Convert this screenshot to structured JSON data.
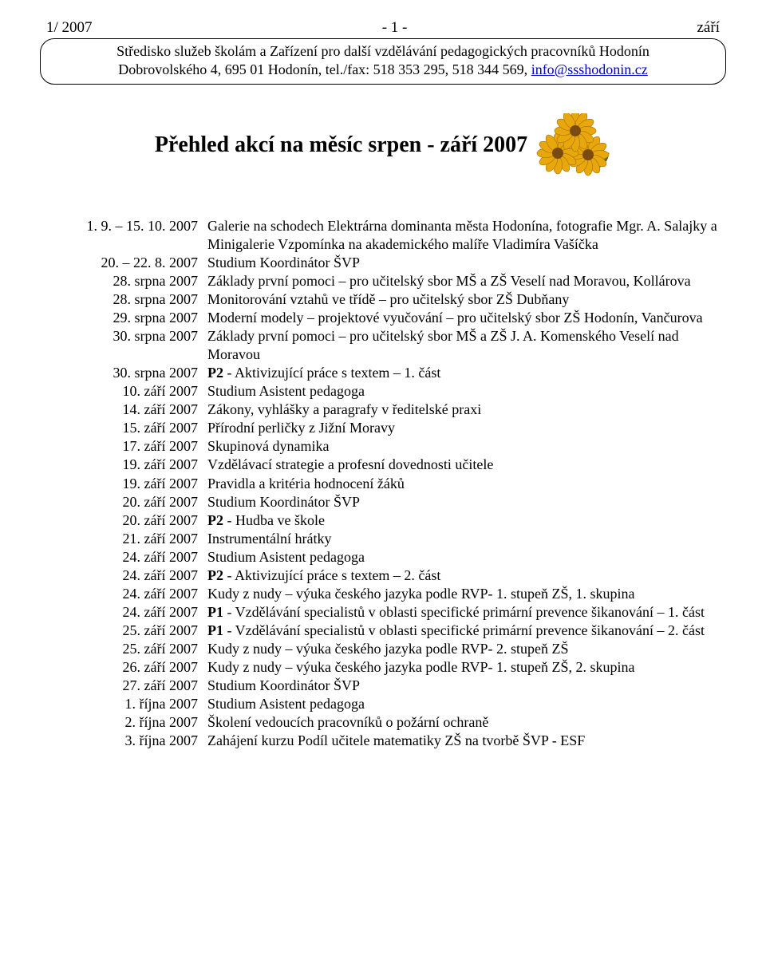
{
  "header": {
    "left": "1/ 2007",
    "center": "- 1 -",
    "right": "září"
  },
  "infobox": {
    "line1": "Středisko služeb školám a Zařízení pro další vzdělávání pedagogických pracovníků Hodonín",
    "line2a": "Dobrovolského 4, 695 01 Hodonín, tel./fax: 518 353 295, 518 344 569, ",
    "email": "info@ssshodonin.cz"
  },
  "title": "Přehled akcí na měsíc srpen - září 2007",
  "events": [
    {
      "date": "1. 9. – 15. 10. 2007",
      "desc": "Galerie na schodech Elektrárna dominanta města Hodonína, fotografie Mgr. A. Salajky a Minigalerie Vzpomínka na akademického malíře Vladimíra Vašíčka"
    },
    {
      "date": "20. – 22. 8. 2007",
      "desc": "Studium Koordinátor ŠVP"
    },
    {
      "date": "28. srpna 2007",
      "desc": "Základy první pomoci – pro učitelský sbor MŠ a ZŠ Veselí nad Moravou, Kollárova"
    },
    {
      "date": "28. srpna 2007",
      "desc": "Monitorování vztahů ve třídě – pro učitelský sbor ZŠ Dubňany"
    },
    {
      "date": "29. srpna 2007",
      "desc": "Moderní modely – projektové vyučování – pro učitelský sbor ZŠ Hodonín, Vančurova"
    },
    {
      "date": "30. srpna 2007",
      "desc": "Základy první pomoci – pro učitelský sbor MŠ a ZŠ J. A. Komenského Veselí nad Moravou"
    },
    {
      "date": "30. srpna 2007",
      "desc": "<b>P2</b> - Aktivizující práce s textem – 1. část"
    },
    {
      "date": "10. září 2007",
      "desc": "Studium Asistent pedagoga"
    },
    {
      "date": "14. září 2007",
      "desc": "Zákony, vyhlášky a paragrafy v ředitelské praxi"
    },
    {
      "date": "15. září 2007",
      "desc": "Přírodní perličky z Jižní Moravy"
    },
    {
      "date": "17. září 2007",
      "desc": "Skupinová dynamika"
    },
    {
      "date": "19. září 2007",
      "desc": "Vzdělávací strategie a profesní dovednosti učitele"
    },
    {
      "date": "19. září 2007",
      "desc": "Pravidla a kritéria hodnocení žáků"
    },
    {
      "date": "20. září 2007",
      "desc": "Studium Koordinátor ŠVP"
    },
    {
      "date": "20. září 2007",
      "desc": "<b>P2</b> - Hudba ve škole"
    },
    {
      "date": "21. září 2007",
      "desc": "Instrumentální hrátky"
    },
    {
      "date": "24. září 2007",
      "desc": "Studium Asistent pedagoga"
    },
    {
      "date": "24. září 2007",
      "desc": "<b>P2</b> - Aktivizující práce s textem – 2. část"
    },
    {
      "date": "24. září 2007",
      "desc": "Kudy z nudy – výuka českého jazyka podle RVP- 1. stupeň ZŠ, 1. skupina"
    },
    {
      "date": "24. září 2007",
      "desc": "<b>P1</b> - Vzdělávání specialistů v oblasti specifické primární prevence šikanování – 1. část"
    },
    {
      "date": "25. září 2007",
      "desc": "<b>P1</b> - Vzdělávání specialistů v oblasti specifické primární prevence šikanování – 2. část"
    },
    {
      "date": "25. září 2007",
      "desc": "Kudy z nudy – výuka českého jazyka podle RVP- 2. stupeň ZŠ"
    },
    {
      "date": "26. září 2007",
      "desc": "Kudy z nudy – výuka českého jazyka podle RVP- 1. stupeň ZŠ, 2. skupina"
    },
    {
      "date": "27. září 2007",
      "desc": "Studium Koordinátor ŠVP"
    },
    {
      "date": "1. října 2007",
      "desc": "Studium Asistent pedagoga"
    },
    {
      "date": "2. října 2007",
      "desc": "Školení vedoucích pracovníků o požární ochraně"
    },
    {
      "date": "3. října 2007",
      "desc": "Zahájení kurzu Podíl učitele matematiky ZŠ na tvorbě ŠVP - ESF"
    }
  ],
  "colors": {
    "petal": "#e8a70c",
    "petal_outline": "#b07900",
    "center_dark": "#7a4a10",
    "leaf": "#4a7a2a",
    "leaf_outline": "#2f5018"
  }
}
